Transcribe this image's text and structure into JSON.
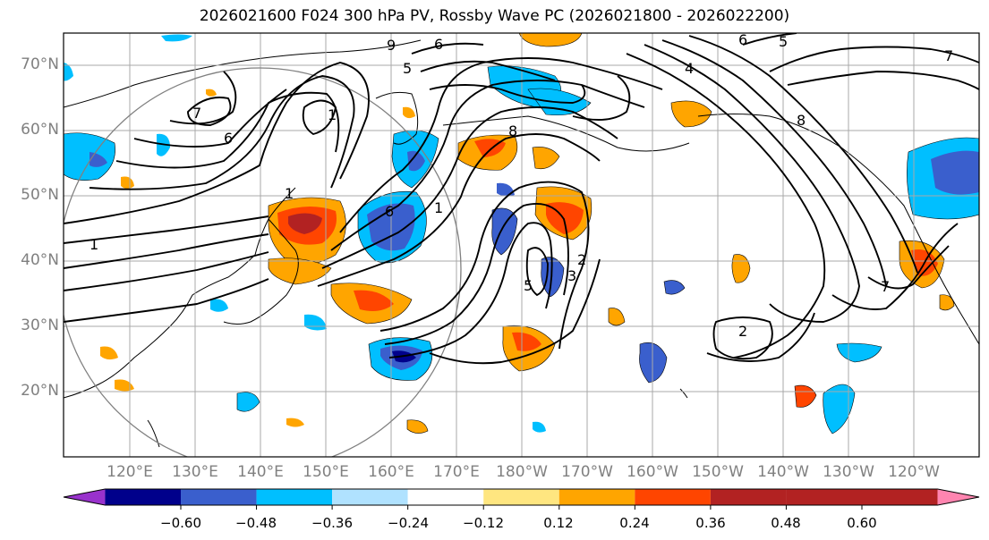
{
  "title": "2026021600 F024 300 hPa PV, Rossby Wave PC (2026021800 - 2026022200)",
  "lat_labels": [
    "70°N",
    "60°N",
    "50°N",
    "40°N",
    "30°N",
    "20°N"
  ],
  "lon_labels": [
    "120°E",
    "130°E",
    "140°E",
    "150°E",
    "160°E",
    "170°E",
    "180°W",
    "170°W",
    "160°W",
    "150°W",
    "140°W",
    "130°W",
    "120°W"
  ],
  "colorbar": {
    "ticks": [
      "−0.60",
      "−0.48",
      "−0.36",
      "−0.24",
      "−0.12",
      "0.12",
      "0.24",
      "0.36",
      "0.48",
      "0.60"
    ],
    "colors": [
      "#9932cc",
      "#00008b",
      "#3a5fcd",
      "#00bfff",
      "#b0e2ff",
      "#ffffff",
      "#ffe680",
      "#ffa500",
      "#ff4500",
      "#b22222",
      "#ff85b0"
    ]
  },
  "contour_labels": [
    "1",
    "1",
    "1",
    "1",
    "2",
    "2",
    "3",
    "4",
    "5",
    "5",
    "5",
    "6",
    "6",
    "6",
    "6",
    "7",
    "7",
    "7",
    "8",
    "8",
    "9"
  ]
}
